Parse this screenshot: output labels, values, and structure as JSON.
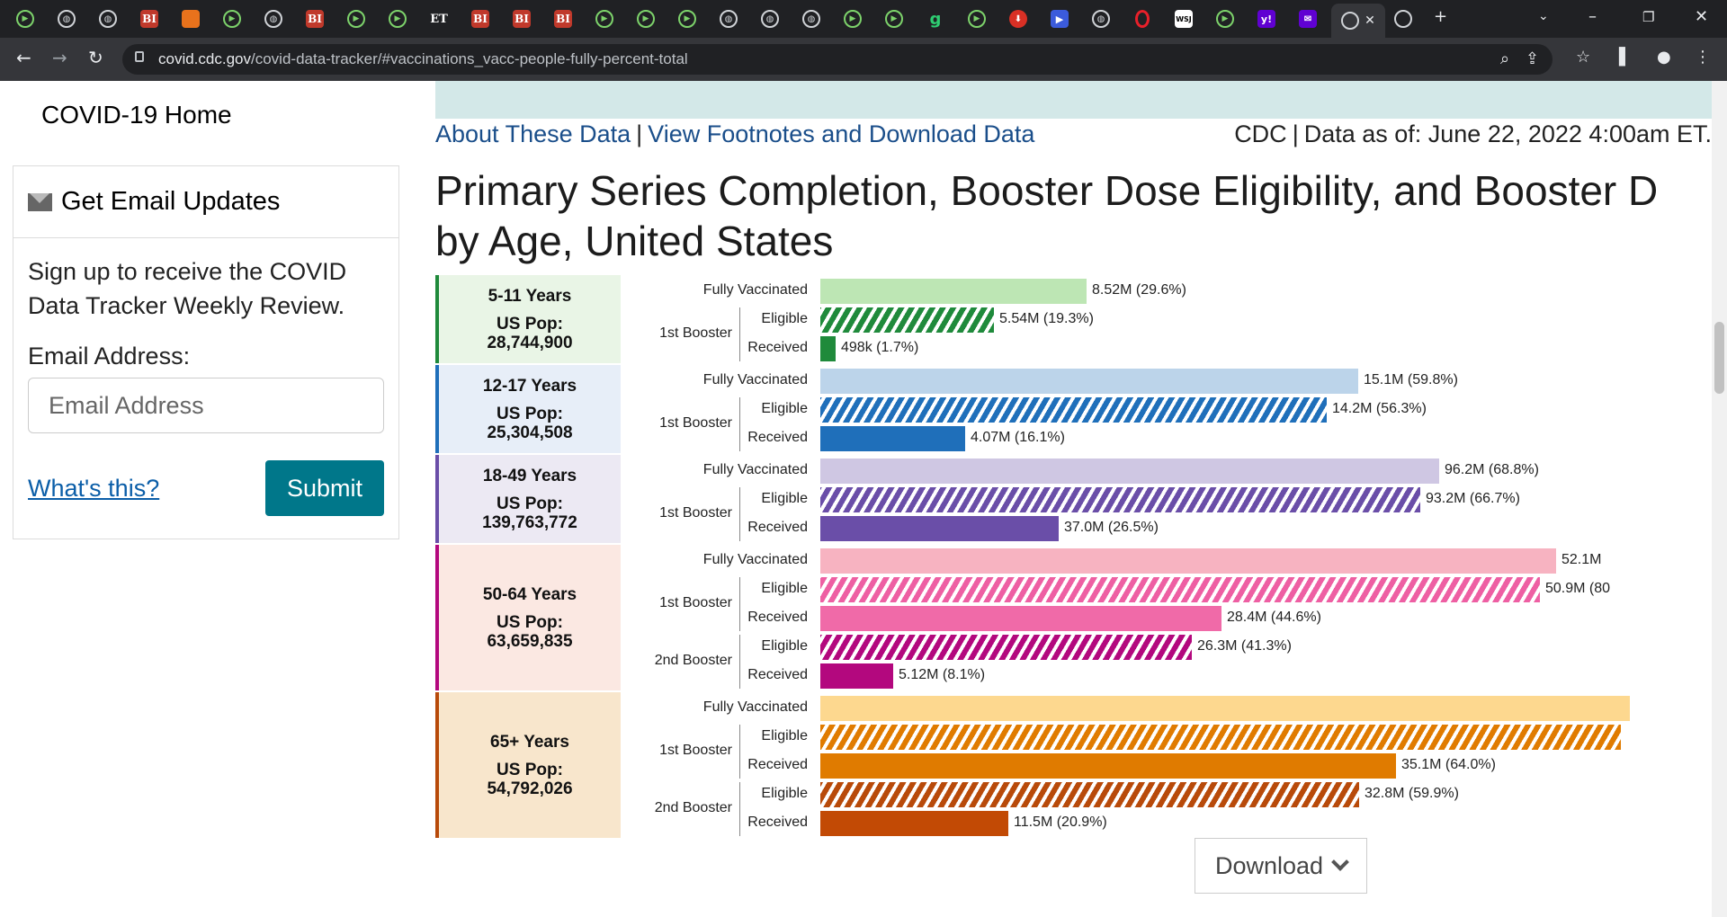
{
  "browser": {
    "tab_icons": [
      "play",
      "globe",
      "globe",
      "bi",
      "bookmark",
      "play",
      "globe",
      "bi",
      "play",
      "play",
      "et",
      "bi",
      "bi",
      "bi",
      "play",
      "play",
      "play",
      "globe",
      "globe",
      "globe",
      "play",
      "play",
      "g",
      "play",
      "red",
      "blue",
      "globe",
      "opera",
      "wsj",
      "play",
      "yahoo",
      "mail"
    ],
    "bi_text": "BI",
    "et_text": "ET",
    "g_text": "g",
    "wsj_text": "WSJ",
    "yahoo_text": "y!",
    "url_host": "covid.cdc.gov",
    "url_path": "/covid-data-tracker/#vaccinations_vacc-people-fully-percent-total"
  },
  "sidebar": {
    "home_link": "COVID-19 Home",
    "email_heading": "Get Email Updates",
    "email_desc": "Sign up to receive the COVID Data Tracker Weekly Review.",
    "email_label": "Email Address:",
    "email_placeholder": "Email Address",
    "whats_this": "What's this?",
    "submit": "Submit"
  },
  "header": {
    "about_link": "About These Data",
    "footnotes_link": "View Footnotes and Download Data",
    "sep": "|",
    "source": "CDC",
    "data_as_of": "Data as of: June 22, 2022 4:00am ET.",
    "title_line1": "Primary Series Completion, Booster Dose Eligibility, and Booster D",
    "title_line2": "by Age, United States"
  },
  "chart_data": {
    "type": "bar",
    "title": "Primary Series Completion, Booster Dose Eligibility, and Booster Doses by Age, United States",
    "groups": [
      {
        "age": "5-11 Years",
        "pop_label": "US Pop:",
        "pop": "28,744,900",
        "color": "#1f8a3b",
        "bg": "#e9f5e6",
        "light": "#bde6b4",
        "rows": [
          {
            "category": "Fully Vaccinated",
            "sub": "",
            "kind": "solid-light",
            "pct": 29.6,
            "label": "8.52M (29.6%)"
          },
          {
            "category": "1st Booster",
            "sub": "Eligible",
            "kind": "hatch",
            "pct": 19.3,
            "label": "5.54M (19.3%)"
          },
          {
            "category": "1st Booster",
            "sub": "Received",
            "kind": "solid",
            "pct": 1.7,
            "label": "498k (1.7%)"
          }
        ]
      },
      {
        "age": "12-17 Years",
        "pop_label": "US Pop:",
        "pop": "25,304,508",
        "color": "#1f6fba",
        "bg": "#e7eef8",
        "light": "#bcd4ea",
        "rows": [
          {
            "category": "Fully Vaccinated",
            "sub": "",
            "kind": "solid-light",
            "pct": 59.8,
            "label": "15.1M (59.8%)"
          },
          {
            "category": "1st Booster",
            "sub": "Eligible",
            "kind": "hatch",
            "pct": 56.3,
            "label": "14.2M (56.3%)"
          },
          {
            "category": "1st Booster",
            "sub": "Received",
            "kind": "solid",
            "pct": 16.1,
            "label": "4.07M (16.1%)"
          }
        ]
      },
      {
        "age": "18-49 Years",
        "pop_label": "US Pop:",
        "pop": "139,763,772",
        "color": "#6a4ea8",
        "bg": "#ece9f3",
        "light": "#cfc7e3",
        "rows": [
          {
            "category": "Fully Vaccinated",
            "sub": "",
            "kind": "solid-light",
            "pct": 68.8,
            "label": "96.2M (68.8%)"
          },
          {
            "category": "1st Booster",
            "sub": "Eligible",
            "kind": "hatch",
            "pct": 66.7,
            "label": "93.2M (66.7%)"
          },
          {
            "category": "1st Booster",
            "sub": "Received",
            "kind": "solid",
            "pct": 26.5,
            "label": "37.0M (26.5%)"
          }
        ]
      },
      {
        "age": "50-64 Years",
        "pop_label": "US Pop:",
        "pop": "63,659,835",
        "color": "#b3087e",
        "bg": "#fbe8e2",
        "light": "#f7b3c1",
        "rows": [
          {
            "category": "Fully Vaccinated",
            "sub": "",
            "kind": "solid-light",
            "pct": 81.8,
            "label": "52.1M",
            "color_override": "#f7b3c1"
          },
          {
            "category": "1st Booster",
            "sub": "Eligible",
            "kind": "hatch",
            "pct": 80.0,
            "label": "50.9M (80",
            "color_override": "#ee5fa3"
          },
          {
            "category": "1st Booster",
            "sub": "Received",
            "kind": "solid",
            "pct": 44.6,
            "label": "28.4M (44.6%)",
            "color_override": "#f06aa8"
          },
          {
            "category": "2nd Booster",
            "sub": "Eligible",
            "kind": "hatch",
            "pct": 41.3,
            "label": "26.3M (41.3%)"
          },
          {
            "category": "2nd Booster",
            "sub": "Received",
            "kind": "solid",
            "pct": 8.1,
            "label": "5.12M (8.1%)"
          }
        ]
      },
      {
        "age": "65+ Years",
        "pop_label": "US Pop:",
        "pop": "54,792,026",
        "color": "#b84a0a",
        "bg": "#f8e6cc",
        "light": "#fdd88f",
        "rows": [
          {
            "category": "Fully Vaccinated",
            "sub": "",
            "kind": "solid-light",
            "pct": 90,
            "label": "",
            "color_override": "#fdd88f"
          },
          {
            "category": "1st Booster",
            "sub": "Eligible",
            "kind": "hatch",
            "pct": 89,
            "label": "",
            "color_override": "#e07b00"
          },
          {
            "category": "1st Booster",
            "sub": "Received",
            "kind": "solid",
            "pct": 64.0,
            "label": "35.1M (64.0%)",
            "color_override": "#e07b00"
          },
          {
            "category": "2nd Booster",
            "sub": "Eligible",
            "kind": "hatch",
            "pct": 59.9,
            "label": "32.8M (59.9%)",
            "color_override": "#b84a0a"
          },
          {
            "category": "2nd Booster",
            "sub": "Received",
            "kind": "solid",
            "pct": 20.9,
            "label": "11.5M (20.9%)",
            "color_override": "#c24a05"
          }
        ]
      }
    ],
    "xlim": [
      0,
      100
    ]
  },
  "download": {
    "label": "Download"
  }
}
